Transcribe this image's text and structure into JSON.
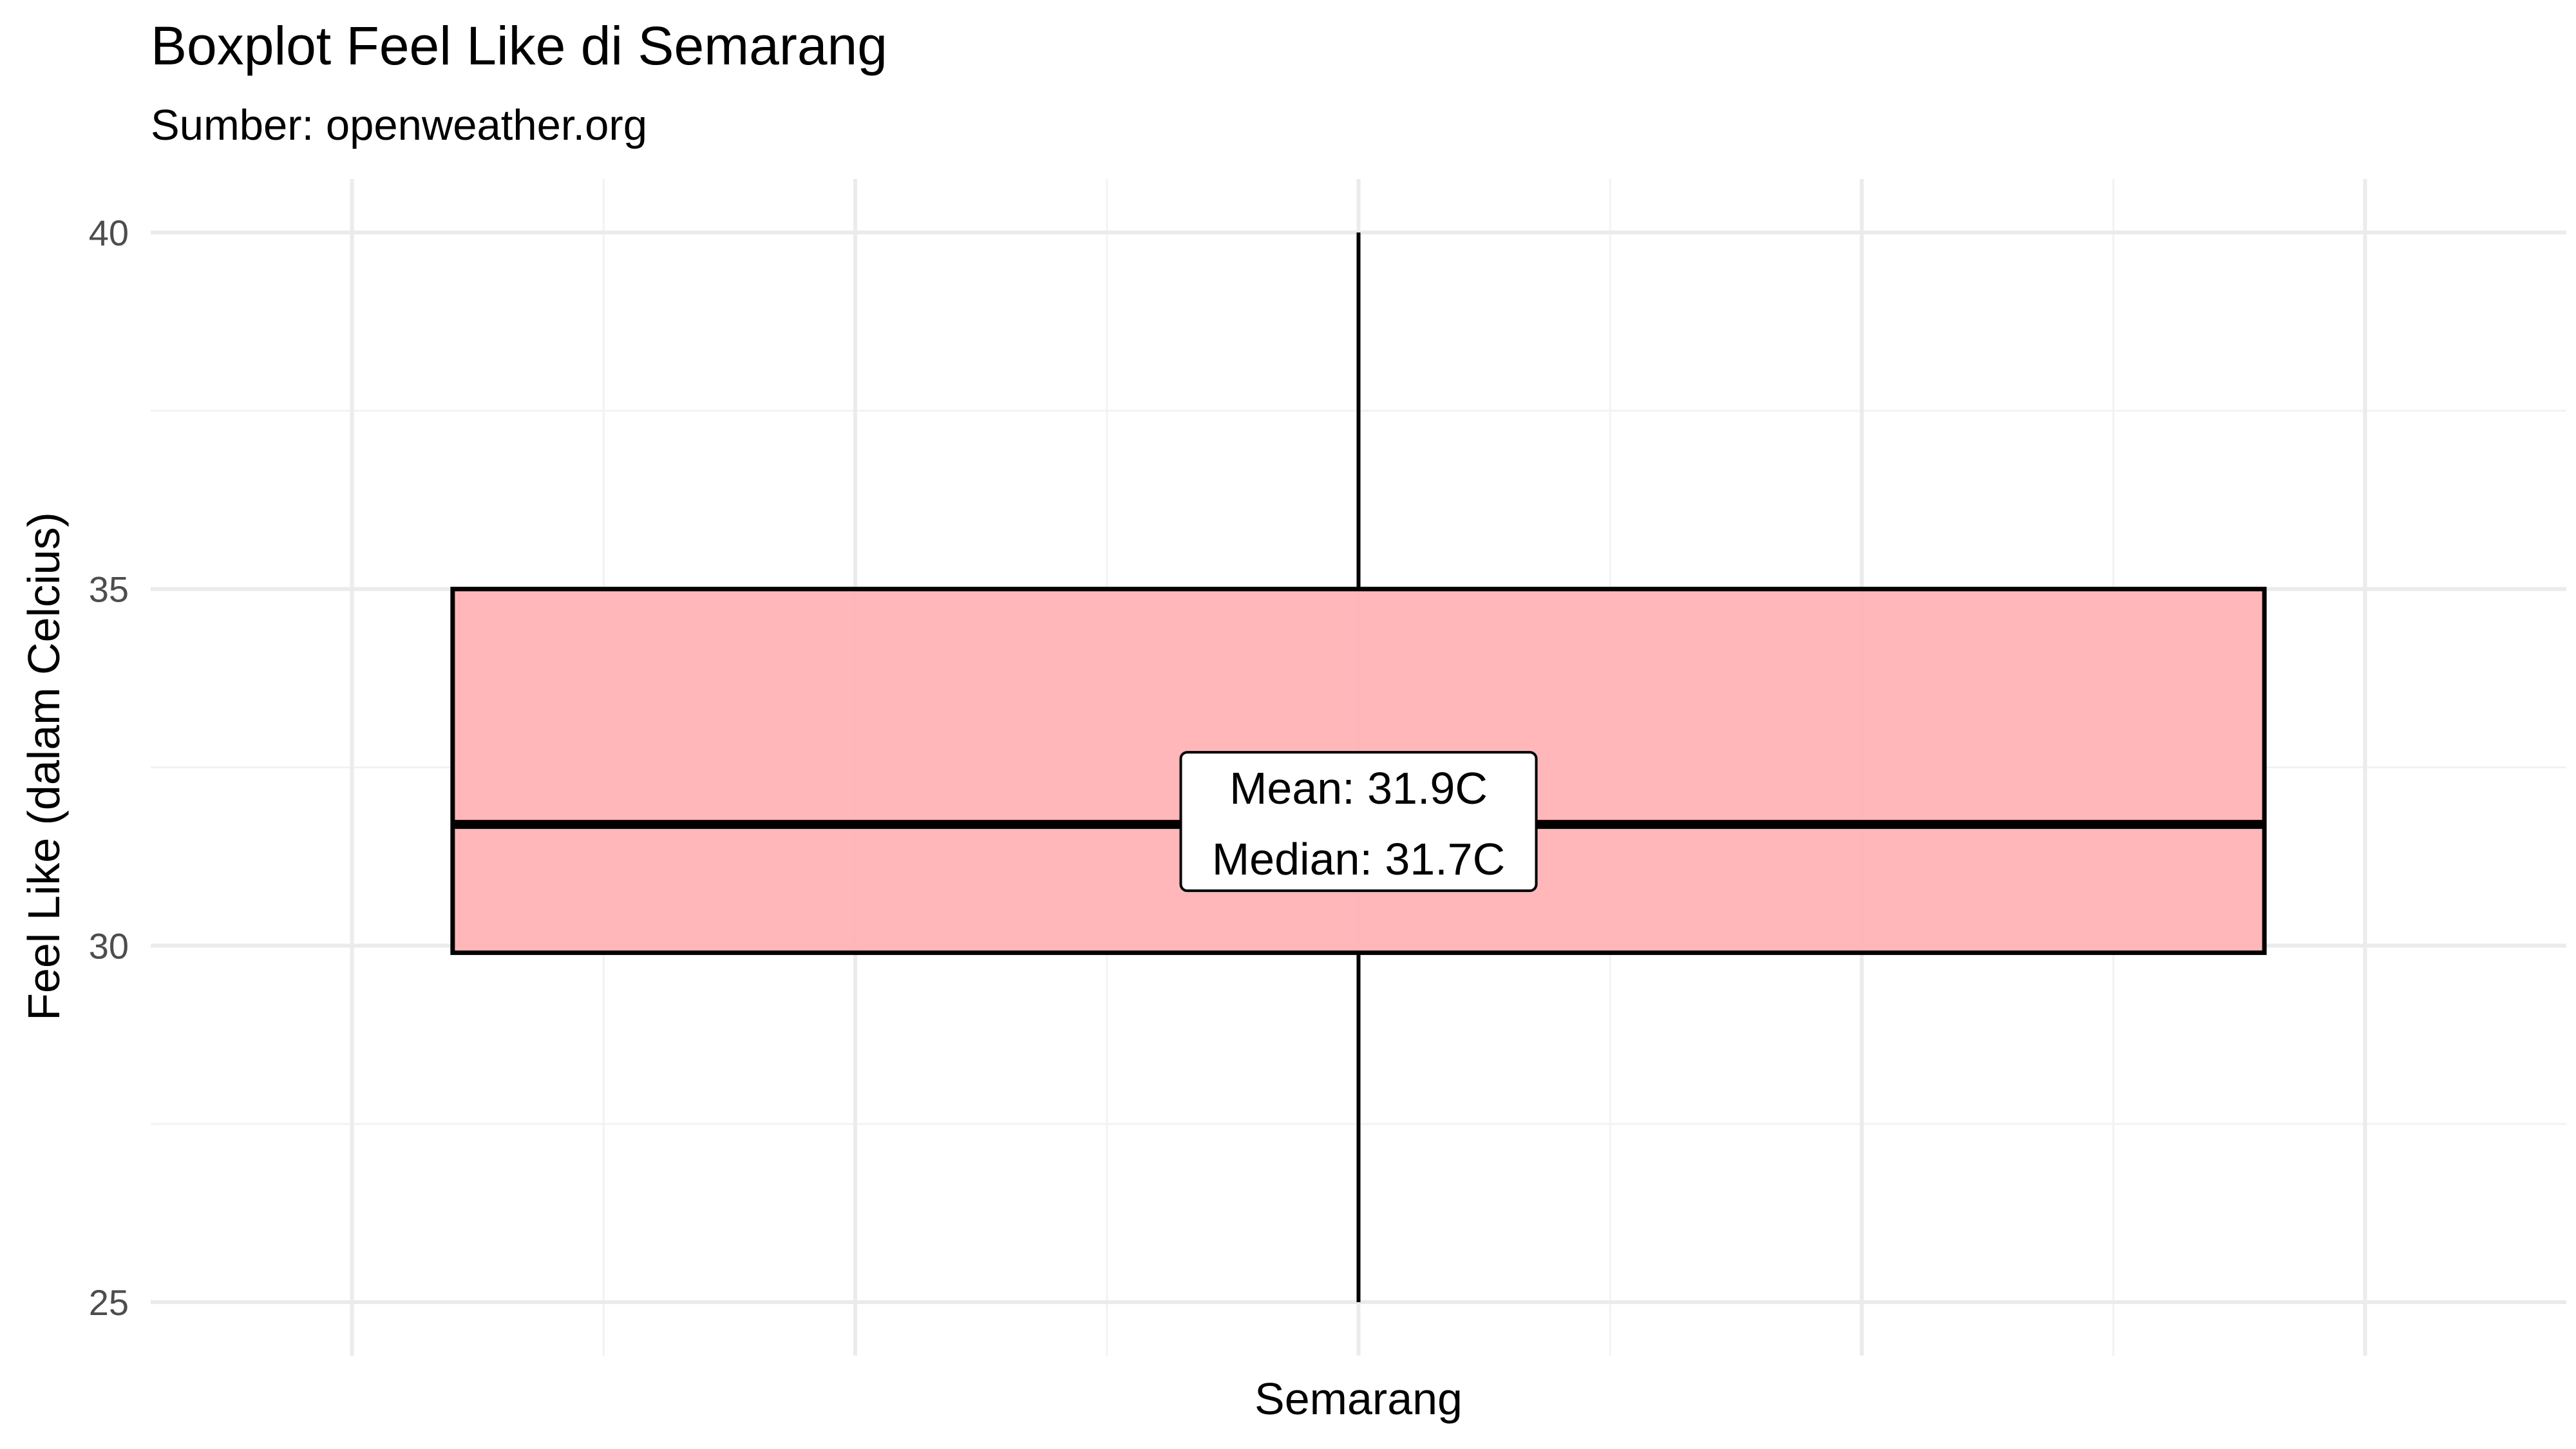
{
  "chart_data": {
    "type": "boxplot",
    "title": "Boxplot Feel Like di Semarang",
    "subtitle": "Sumber: openweather.org",
    "xlabel": "",
    "ylabel": "Feel Like (dalam Celcius)",
    "ylim": [
      24.25,
      40.75
    ],
    "yticks": [
      25,
      30,
      35,
      40
    ],
    "grid": true,
    "legend": "none",
    "categories": [
      "Semarang"
    ],
    "boxes": [
      {
        "category": "Semarang",
        "min": 25,
        "q1": 29.9,
        "median": 31.7,
        "q3": 35,
        "max": 40,
        "mean": 31.9
      }
    ],
    "annotations": [
      "Mean: 31.9C",
      "Median: 31.7C"
    ],
    "colors": {
      "box_fill": "#ffb3b6",
      "box_stroke": "#000000",
      "grid_major": "#ebebeb",
      "grid_minor": "#f2f2f2"
    }
  }
}
